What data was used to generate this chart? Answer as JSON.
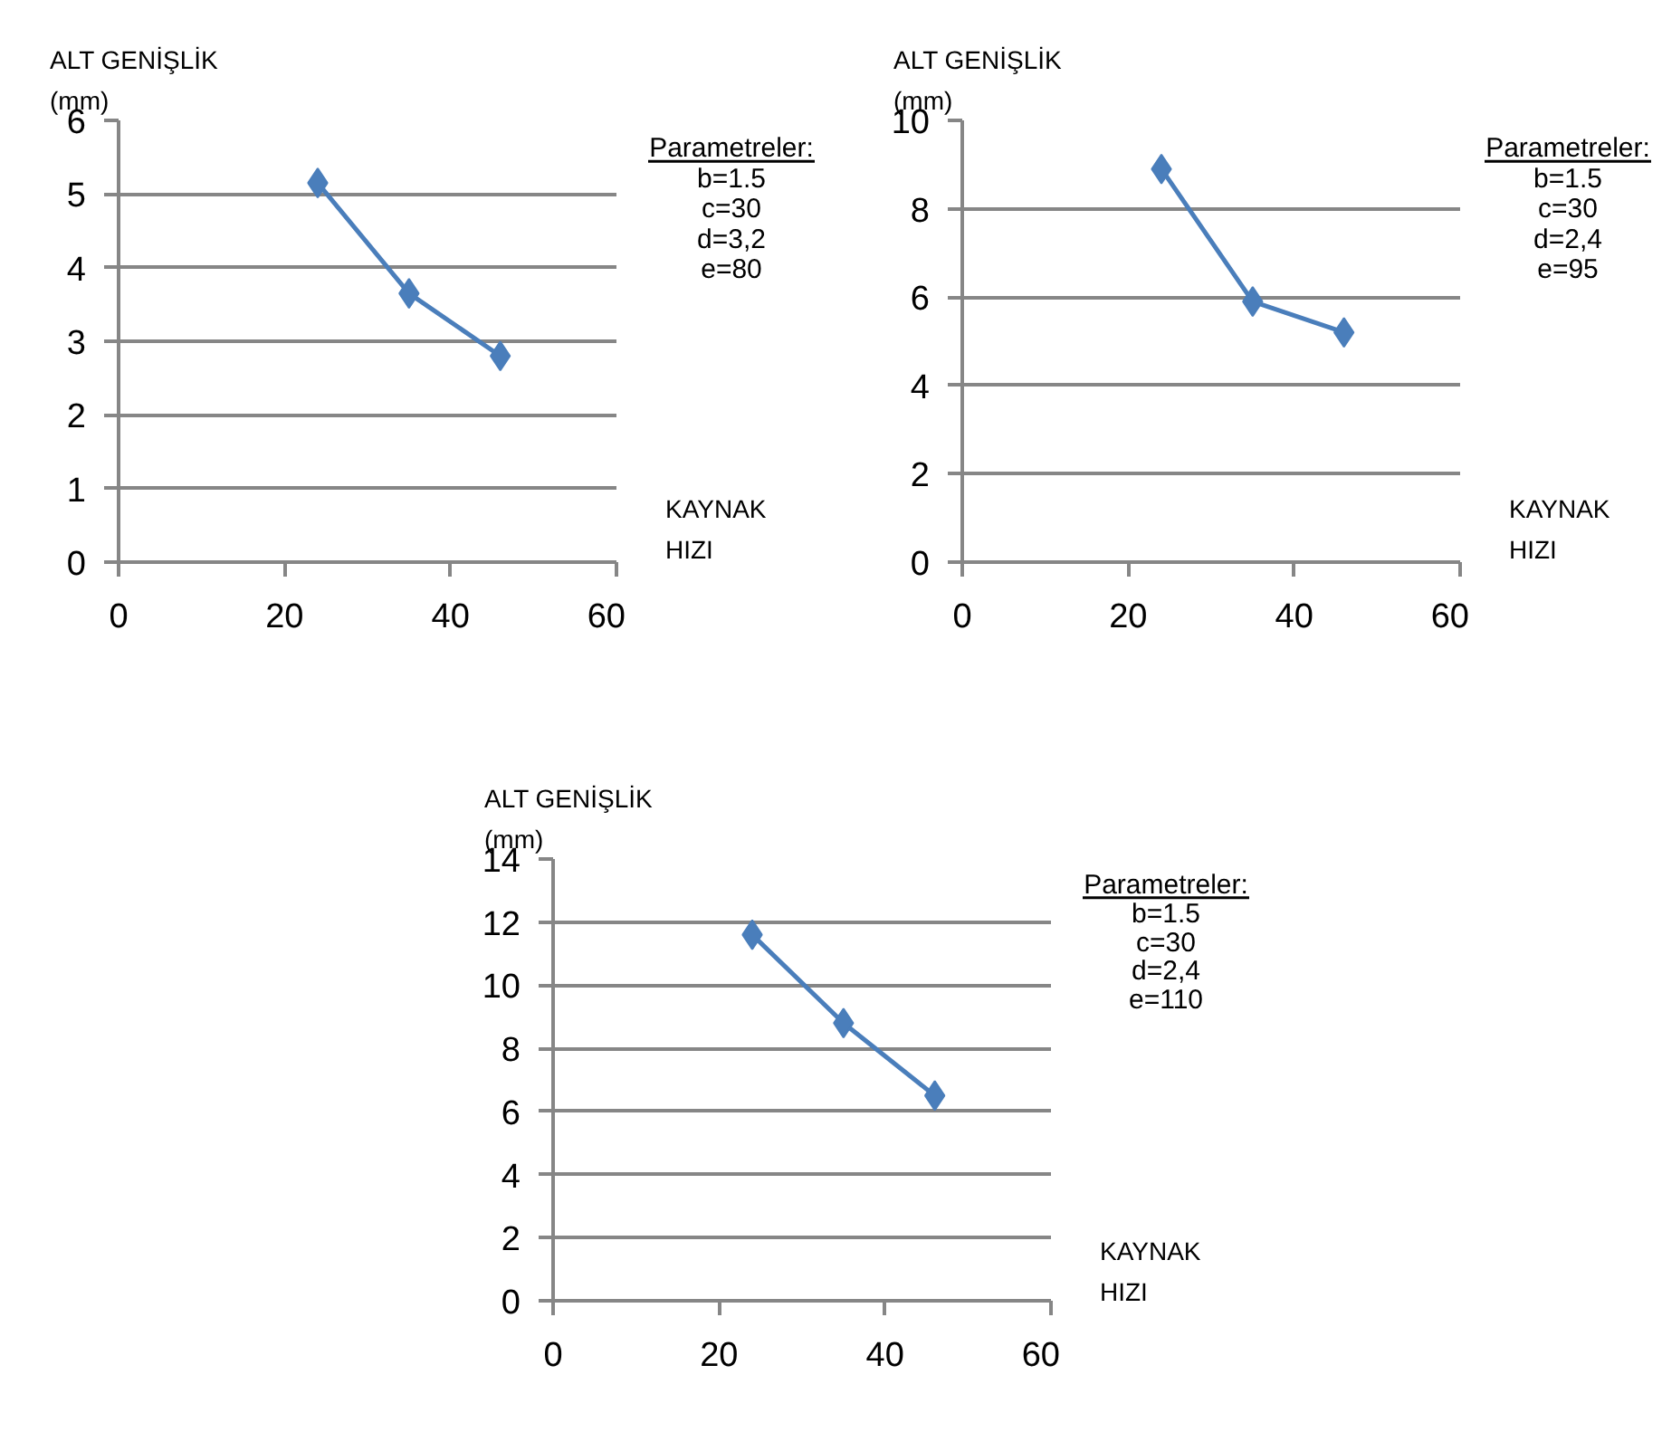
{
  "chart_data": [
    {
      "type": "line",
      "xlabel": "KAYNAK\nHIZI",
      "ylabel": "ALT GENİŞLİK\n(mm)",
      "x": [
        24,
        35,
        46
      ],
      "series": [
        {
          "color": "#4a7ebb",
          "values": [
            5.15,
            3.65,
            2.8
          ]
        }
      ],
      "xlim": [
        0,
        60
      ],
      "xticks": [
        0,
        20,
        40,
        60
      ],
      "ylim": [
        0,
        6
      ],
      "yticks": [
        0,
        1,
        2,
        3,
        4,
        5,
        6
      ],
      "grid": "y",
      "marker": "diamond",
      "line_style": "solid",
      "annotations": [
        "Parametreler:",
        "b=1.5",
        "c=30",
        "d=3,2",
        "e=80"
      ]
    },
    {
      "type": "line",
      "xlabel": "KAYNAK\nHIZI",
      "ylabel": "ALT GENİŞLİK\n(mm)",
      "x": [
        24,
        35,
        46
      ],
      "series": [
        {
          "color": "#4a7ebb",
          "values": [
            8.9,
            5.9,
            5.2
          ]
        }
      ],
      "xlim": [
        0,
        60
      ],
      "xticks": [
        0,
        20,
        40,
        60
      ],
      "ylim": [
        0,
        10
      ],
      "yticks": [
        0,
        2,
        4,
        6,
        8,
        10
      ],
      "grid": "y",
      "marker": "diamond",
      "line_style": "solid",
      "annotations": [
        "Parametreler:",
        "b=1.5",
        "c=30",
        "d=2,4",
        "e=95"
      ]
    },
    {
      "type": "line",
      "xlabel": "KAYNAK\nHIZI",
      "ylabel": "ALT GENİŞLİK\n(mm)",
      "x": [
        24,
        35,
        46
      ],
      "series": [
        {
          "color": "#4a7ebb",
          "values": [
            11.6,
            8.8,
            6.5
          ]
        }
      ],
      "xlim": [
        0,
        60
      ],
      "xticks": [
        0,
        20,
        40,
        60
      ],
      "ylim": [
        0,
        14
      ],
      "yticks": [
        0,
        2,
        4,
        6,
        8,
        10,
        12,
        14
      ],
      "grid": "y",
      "marker": "diamond",
      "line_style": "solid",
      "annotations": [
        "Parametreler:",
        "b=1.5",
        "c=30",
        "d=2,4",
        "e=110"
      ]
    }
  ]
}
